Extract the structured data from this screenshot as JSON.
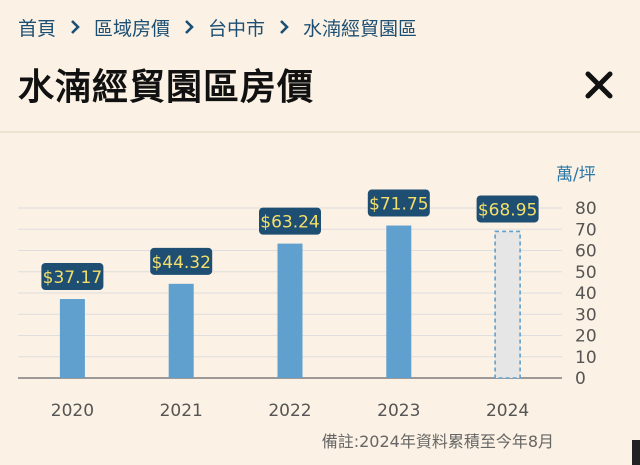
{
  "breadcrumb": {
    "items": [
      "首頁",
      "區域房價",
      "台中市",
      "水湳經貿園區"
    ]
  },
  "title": "水湳經貿園區房價",
  "icons": {
    "close": "close-icon",
    "separator": "chevron-right-icon"
  },
  "colors": {
    "bar": "#5fa0cf",
    "bar_projected_fill": "#e6e6e6",
    "bar_projected_stroke": "#5fa0cf",
    "label_bg": "#1f4e73",
    "label_text": "#f4df6a",
    "unit": "#2b78a8"
  },
  "chart_data": {
    "type": "bar",
    "categories": [
      "2020",
      "2021",
      "2022",
      "2023",
      "2024"
    ],
    "values": [
      37.17,
      44.32,
      63.24,
      71.75,
      68.95
    ],
    "data_labels": [
      "$37.17",
      "$44.32",
      "$63.24",
      "$71.75",
      "$68.95"
    ],
    "projected": [
      false,
      false,
      false,
      false,
      true
    ],
    "unit_label": "萬/坪",
    "ylim": [
      0,
      80
    ],
    "yticks": [
      "0",
      "10",
      "20",
      "30",
      "40",
      "50",
      "60",
      "70",
      "80"
    ],
    "grid": true
  },
  "footnote": "備註:2024年資料累積至今年8月"
}
